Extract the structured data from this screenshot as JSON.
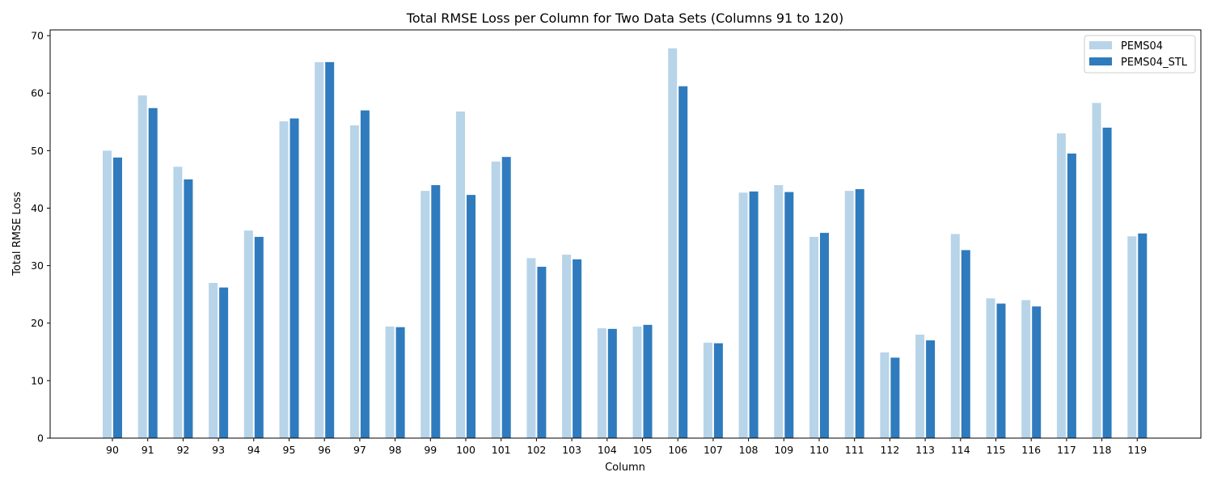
{
  "chart_data": {
    "type": "bar",
    "title": "Total RMSE Loss per Column for Two Data Sets (Columns 91 to 120)",
    "xlabel": "Column",
    "ylabel": "Total RMSE Loss",
    "ylim": [
      0,
      71
    ],
    "yticks": [
      0,
      10,
      20,
      30,
      40,
      50,
      60,
      70
    ],
    "categories": [
      "90",
      "91",
      "92",
      "93",
      "94",
      "95",
      "96",
      "97",
      "98",
      "99",
      "100",
      "101",
      "102",
      "103",
      "104",
      "105",
      "106",
      "107",
      "108",
      "109",
      "110",
      "111",
      "112",
      "113",
      "114",
      "115",
      "116",
      "117",
      "118",
      "119"
    ],
    "legend_position": "top-right",
    "grid": false,
    "series": [
      {
        "name": "PEMS04",
        "color": "#b8d4e8",
        "values": [
          50.0,
          59.6,
          47.2,
          27.0,
          36.1,
          55.1,
          65.4,
          54.4,
          19.4,
          43.0,
          56.8,
          48.1,
          31.3,
          31.9,
          19.1,
          19.4,
          67.8,
          16.6,
          42.7,
          44.0,
          35.0,
          43.0,
          14.9,
          18.0,
          35.5,
          24.3,
          24.0,
          53.0,
          58.3,
          35.1
        ]
      },
      {
        "name": "PEMS04_STL",
        "color": "#2f7bbd",
        "values": [
          48.8,
          57.4,
          45.0,
          26.2,
          35.0,
          55.6,
          65.4,
          57.0,
          19.3,
          44.0,
          42.3,
          48.9,
          29.8,
          31.1,
          19.0,
          19.7,
          61.2,
          16.5,
          42.9,
          42.8,
          35.7,
          43.3,
          14.0,
          17.0,
          32.7,
          23.4,
          22.9,
          49.5,
          54.0,
          35.6
        ]
      }
    ]
  }
}
